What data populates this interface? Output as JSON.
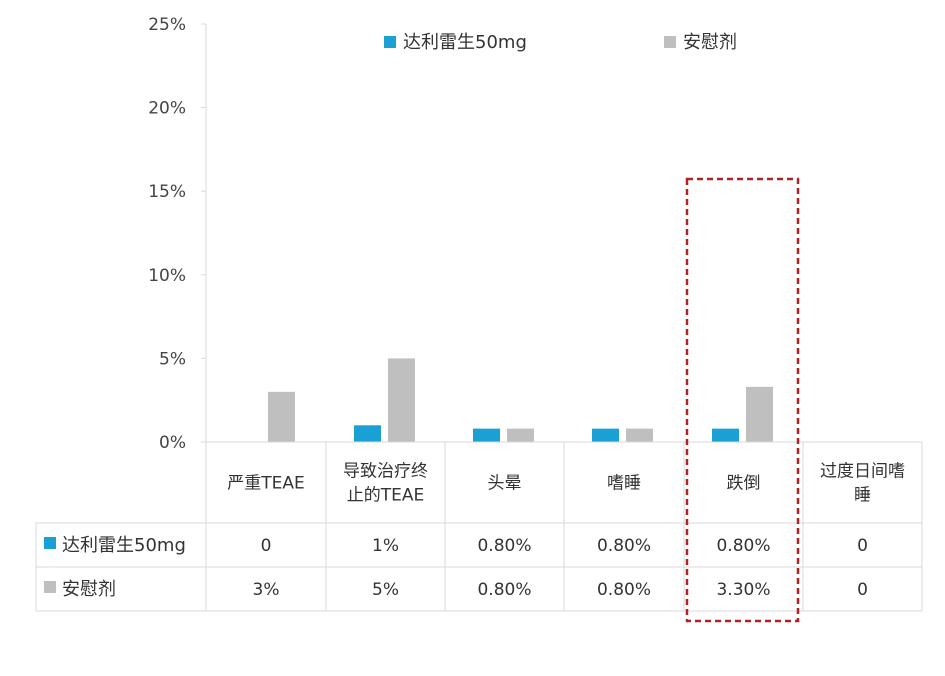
{
  "chart_data": {
    "type": "bar",
    "categories": [
      [
        "严重TEAE"
      ],
      [
        "导致治疗终",
        "止的TEAE"
      ],
      [
        "头晕"
      ],
      [
        "嗜睡"
      ],
      [
        "跌倒"
      ],
      [
        "过度日间嗜",
        "睡"
      ]
    ],
    "series": [
      {
        "name": "达利雷生50mg",
        "color": "#1ba0d4",
        "values": [
          0,
          1,
          0.8,
          0.8,
          0.8,
          0
        ],
        "table_labels": [
          "0",
          "1%",
          "0.80%",
          "0.80%",
          "0.80%",
          "0"
        ]
      },
      {
        "name": "安慰剂",
        "color": "#bfbfbf",
        "values": [
          3,
          5,
          0.8,
          0.8,
          3.3,
          0
        ],
        "table_labels": [
          "3%",
          "5%",
          "0.80%",
          "0.80%",
          "3.30%",
          "0"
        ]
      }
    ],
    "y_ticks": [
      "0%",
      "5%",
      "10%",
      "15%",
      "20%",
      "25%"
    ],
    "ylim": [
      0,
      25
    ],
    "grid": false,
    "legend_position": "top",
    "data_table": true,
    "highlight": {
      "category": "跌倒",
      "style": "dashed-box",
      "color": "#b22222"
    }
  }
}
